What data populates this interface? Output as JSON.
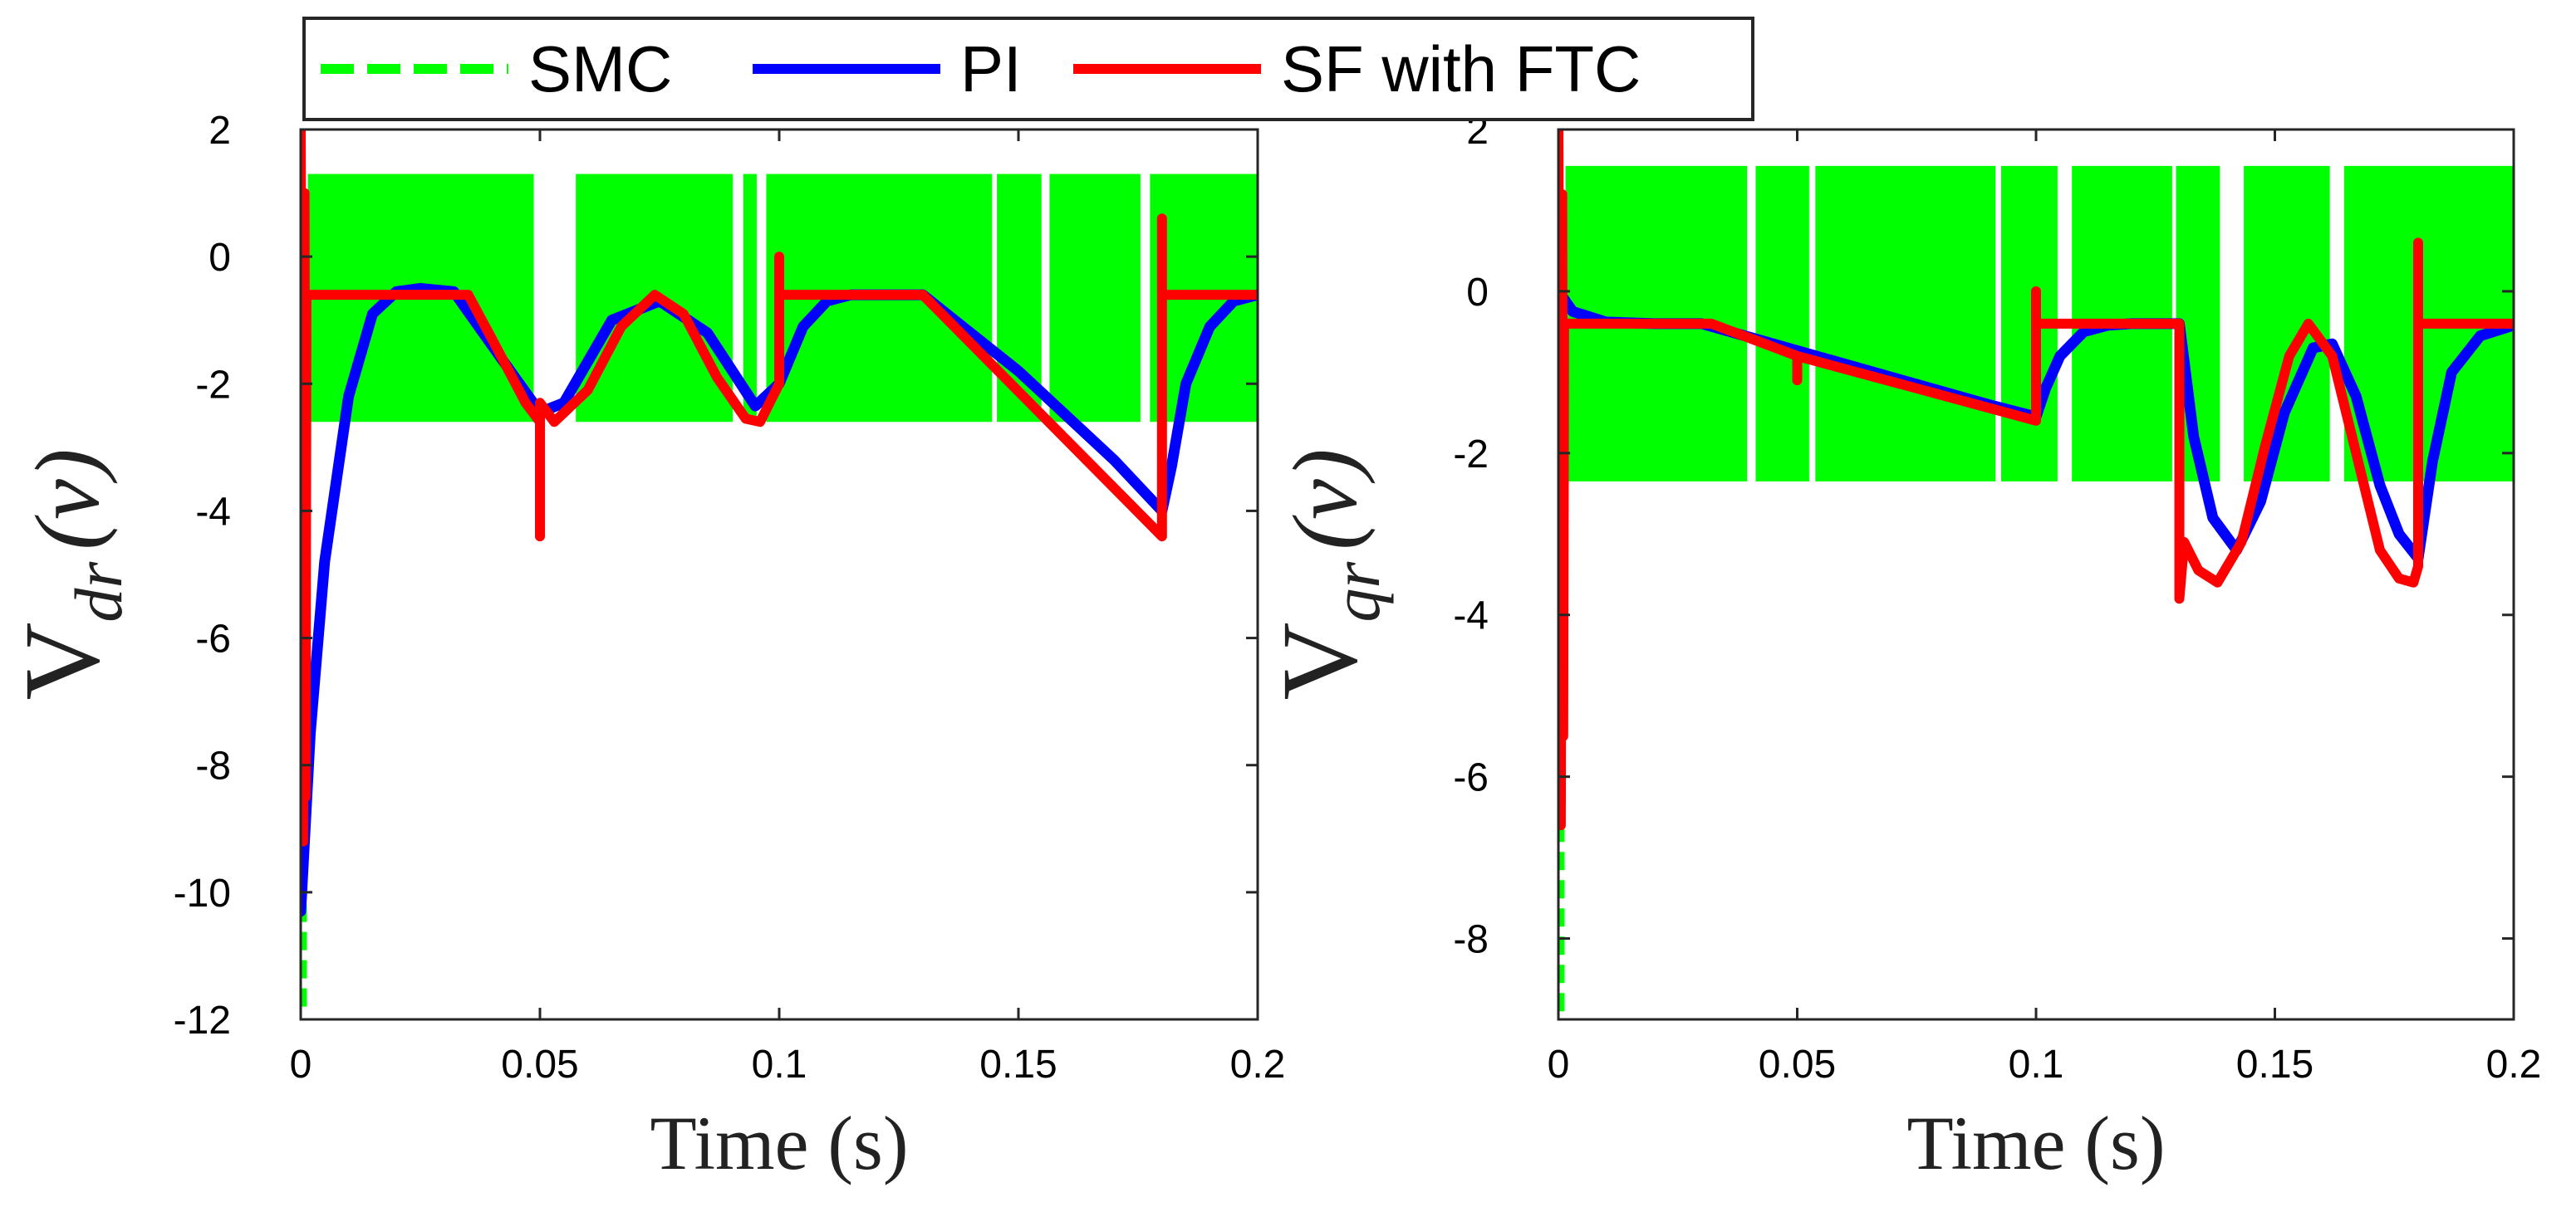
{
  "legend": {
    "entries": [
      {
        "label": "SMC",
        "color": "#00ff00",
        "style": "dashed"
      },
      {
        "label": "PI",
        "color": "#0000ff",
        "style": "solid"
      },
      {
        "label": "SF with FTC",
        "color": "#ff0000",
        "style": "solid"
      }
    ]
  },
  "chart_data": [
    {
      "type": "line",
      "title": "",
      "xlabel": "Time (s)",
      "ylabel": "V_dr (v)",
      "ylabel_main": "V",
      "ylabel_sub": "dr",
      "ylabel_unit": "(v)",
      "xlim": [
        0,
        0.2
      ],
      "ylim": [
        -12,
        2
      ],
      "xticks": [
        0,
        0.05,
        0.1,
        0.15,
        0.2
      ],
      "xtick_labels": [
        "0",
        "0.05",
        "0.1",
        "0.15",
        "0.2"
      ],
      "yticks": [
        2,
        0,
        -2,
        -4,
        -6,
        -8,
        -10,
        -12
      ],
      "ytick_labels": [
        "2",
        "0",
        "-2",
        "-4",
        "-6",
        "-8",
        "-10",
        "-12"
      ],
      "grid": false,
      "smc_band": {
        "low": -2.6,
        "high": 1.3,
        "gaps": [
          [
            0.0487,
            0.0575
          ],
          [
            0.0903,
            0.0925
          ],
          [
            0.0953,
            0.0973
          ],
          [
            0.1445,
            0.1455
          ],
          [
            0.1548,
            0.1565
          ],
          [
            0.1755,
            0.1775
          ]
        ],
        "initial_spike": [
          -11.8,
          -10.2
        ]
      },
      "series": [
        {
          "name": "SMC",
          "x": [
            0,
            0.2
          ],
          "y": [
            -0.6,
            -0.6
          ]
        },
        {
          "name": "PI",
          "x": [
            0,
            0.002,
            0.005,
            0.01,
            0.015,
            0.02,
            0.025,
            0.032,
            0.04,
            0.05,
            0.055,
            0.065,
            0.075,
            0.085,
            0.095,
            0.1,
            0.105,
            0.11,
            0.115,
            0.12,
            0.13,
            0.15,
            0.17,
            0.18,
            0.182,
            0.185,
            0.19,
            0.195,
            0.2
          ],
          "y": [
            -10.3,
            -7.5,
            -4.8,
            -2.2,
            -0.9,
            -0.55,
            -0.5,
            -0.55,
            -1.4,
            -2.45,
            -2.3,
            -1.0,
            -0.7,
            -1.2,
            -2.35,
            -2.0,
            -1.1,
            -0.7,
            -0.6,
            -0.6,
            -0.6,
            -1.8,
            -3.2,
            -4.0,
            -3.3,
            -2.0,
            -1.1,
            -0.7,
            -0.6
          ]
        },
        {
          "name": "SF with FTC",
          "x": [
            0,
            0.0005,
            0.0008,
            0.001,
            0.0012,
            0.0015,
            0.035,
            0.04,
            0.047,
            0.05,
            0.05,
            0.05,
            0.053,
            0.06,
            0.067,
            0.074,
            0.08,
            0.087,
            0.093,
            0.096,
            0.1,
            0.1,
            0.1,
            0.1,
            0.13,
            0.18,
            0.18,
            0.18,
            0.18,
            0.2
          ],
          "y": [
            2.0,
            -9.2,
            1.0,
            -8.5,
            -0.6,
            -0.6,
            -0.6,
            -1.3,
            -2.3,
            -2.6,
            -4.4,
            -2.3,
            -2.6,
            -2.1,
            -1.1,
            -0.6,
            -0.9,
            -1.9,
            -2.55,
            -2.6,
            -2.0,
            -0.0,
            -0.6,
            -0.6,
            -0.6,
            -4.4,
            0.6,
            -0.6,
            -0.6,
            -0.6
          ]
        }
      ]
    },
    {
      "type": "line",
      "title": "",
      "xlabel": "Time (s)",
      "ylabel": "V_qr (v)",
      "ylabel_main": "V",
      "ylabel_sub": "qr",
      "ylabel_unit": "(v)",
      "xlim": [
        0,
        0.2
      ],
      "ylim": [
        -9,
        2
      ],
      "xticks": [
        0,
        0.05,
        0.1,
        0.15,
        0.2
      ],
      "xtick_labels": [
        "0",
        "0.05",
        "0.1",
        "0.15",
        "0.2"
      ],
      "yticks": [
        2,
        0,
        -2,
        -4,
        -6,
        -8
      ],
      "ytick_labels": [
        "2",
        "0",
        "-2",
        "-4",
        "-6",
        "-8"
      ],
      "grid": false,
      "smc_band": {
        "low": -2.35,
        "high": 1.55,
        "gaps": [
          [
            0.0395,
            0.0413
          ],
          [
            0.0525,
            0.0538
          ],
          [
            0.0915,
            0.0927
          ],
          [
            0.1045,
            0.1075
          ],
          [
            0.1285,
            0.1293
          ],
          [
            0.1385,
            0.1435
          ],
          [
            0.1615,
            0.1645
          ]
        ],
        "initial_spike": [
          -8.9,
          -6.6
        ]
      },
      "series": [
        {
          "name": "SMC",
          "x": [
            0,
            0.2
          ],
          "y": [
            -0.4,
            -0.4
          ]
        },
        {
          "name": "PI",
          "x": [
            0,
            0.003,
            0.01,
            0.02,
            0.03,
            0.06,
            0.09,
            0.1,
            0.102,
            0.105,
            0.11,
            0.115,
            0.12,
            0.13,
            0.133,
            0.137,
            0.142,
            0.147,
            0.152,
            0.158,
            0.162,
            0.167,
            0.172,
            0.176,
            0.18,
            0.183,
            0.187,
            0.193,
            0.2
          ],
          "y": [
            0.0,
            -0.25,
            -0.38,
            -0.4,
            -0.4,
            -0.9,
            -1.4,
            -1.55,
            -1.2,
            -0.8,
            -0.5,
            -0.42,
            -0.4,
            -0.4,
            -1.8,
            -2.8,
            -3.2,
            -2.6,
            -1.5,
            -0.7,
            -0.65,
            -1.3,
            -2.4,
            -3.0,
            -3.3,
            -2.1,
            -1.0,
            -0.55,
            -0.42
          ]
        },
        {
          "name": "SF with FTC",
          "x": [
            0,
            0.0005,
            0.0008,
            0.001,
            0.0012,
            0.0015,
            0.032,
            0.05,
            0.05,
            0.05,
            0.1,
            0.1,
            0.1,
            0.1,
            0.13,
            0.13,
            0.131,
            0.134,
            0.138,
            0.143,
            0.148,
            0.153,
            0.157,
            0.162,
            0.167,
            0.172,
            0.176,
            0.179,
            0.18,
            0.18,
            0.18,
            0.2
          ],
          "y": [
            2.0,
            -6.6,
            1.2,
            -5.5,
            -0.4,
            -0.4,
            -0.4,
            -0.8,
            -1.1,
            -0.8,
            -1.6,
            0.0,
            -0.4,
            -0.4,
            -0.4,
            -3.8,
            -3.1,
            -3.45,
            -3.6,
            -3.1,
            -1.9,
            -0.8,
            -0.4,
            -0.8,
            -2.0,
            -3.2,
            -3.55,
            -3.6,
            -3.4,
            0.6,
            -0.4,
            -0.4
          ]
        }
      ]
    }
  ]
}
